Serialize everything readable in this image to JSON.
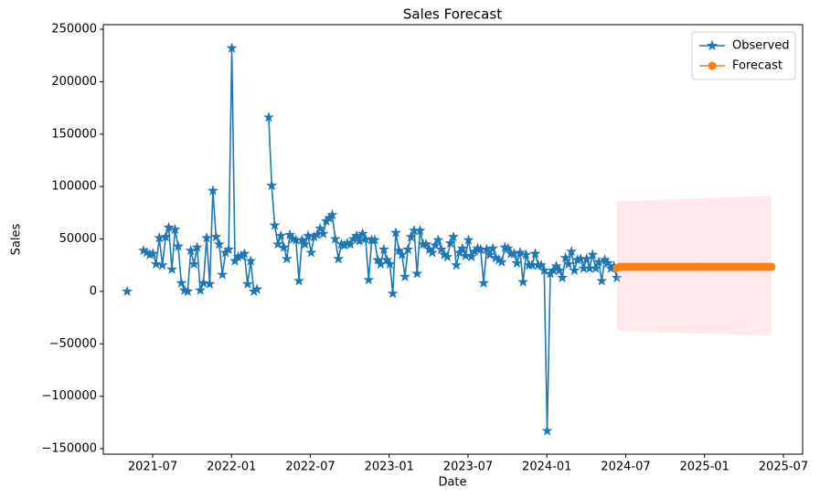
{
  "chart_data": {
    "type": "line",
    "title": "Sales Forecast",
    "x_label": "Date",
    "y_label": "Sales",
    "xlim": [
      2021.187,
      2025.622
    ],
    "ylim": [
      -155200,
      254400
    ],
    "grid": false,
    "legend": "upper right",
    "xticks": [
      {
        "value": 2021.5,
        "label": "2021-07"
      },
      {
        "value": 2022.0,
        "label": "2022-01"
      },
      {
        "value": 2022.5,
        "label": "2022-07"
      },
      {
        "value": 2023.0,
        "label": "2023-01"
      },
      {
        "value": 2023.5,
        "label": "2023-07"
      },
      {
        "value": 2024.0,
        "label": "2024-01"
      },
      {
        "value": 2024.5,
        "label": "2024-07"
      },
      {
        "value": 2025.0,
        "label": "2025-01"
      },
      {
        "value": 2025.5,
        "label": "2025-07"
      }
    ],
    "yticks": [
      {
        "value": -150000,
        "label": "−150000"
      },
      {
        "value": -100000,
        "label": "−100000"
      },
      {
        "value": -50000,
        "label": "−50000"
      },
      0,
      50000,
      100000,
      150000,
      200000,
      250000
    ],
    "series": [
      {
        "name": "Observed",
        "color": "#1f77b4",
        "marker": "star",
        "x": [
          2021.338,
          2021.4,
          2021.442,
          2021.462,
          2021.482,
          2021.502,
          2021.522,
          2021.542,
          2021.562,
          2021.582,
          2021.602,
          2021.622,
          2021.642,
          2021.662,
          2021.682,
          2021.702,
          2021.722,
          2021.742,
          2021.762,
          2021.782,
          2021.802,
          2021.822,
          2021.842,
          2021.862,
          2021.882,
          2021.902,
          2021.922,
          2021.942,
          2021.962,
          2021.982,
          2022.002,
          2022.022,
          2022.042,
          2022.062,
          2022.082,
          2022.102,
          2022.122,
          2022.142,
          2022.162,
          2022.2,
          2022.236,
          2022.255,
          2022.274,
          2022.294,
          2022.313,
          2022.332,
          2022.351,
          2022.37,
          2022.39,
          2022.409,
          2022.428,
          2022.447,
          2022.466,
          2022.486,
          2022.505,
          2022.524,
          2022.543,
          2022.562,
          2022.582,
          2022.601,
          2022.62,
          2022.639,
          2022.658,
          2022.678,
          2022.697,
          2022.716,
          2022.735,
          2022.754,
          2022.774,
          2022.793,
          2022.812,
          2022.831,
          2022.85,
          2022.87,
          2022.889,
          2022.908,
          2022.927,
          2022.946,
          2022.966,
          2022.985,
          2023.004,
          2023.023,
          2023.042,
          2023.062,
          2023.081,
          2023.1,
          2023.119,
          2023.138,
          2023.158,
          2023.177,
          2023.196,
          2023.215,
          2023.234,
          2023.254,
          2023.273,
          2023.292,
          2023.311,
          2023.33,
          2023.35,
          2023.369,
          2023.388,
          2023.407,
          2023.426,
          2023.446,
          2023.465,
          2023.484,
          2023.503,
          2023.522,
          2023.542,
          2023.561,
          2023.58,
          2023.599,
          2023.618,
          2023.638,
          2023.657,
          2023.676,
          2023.695,
          2023.714,
          2023.734,
          2023.753,
          2023.772,
          2023.791,
          2023.81,
          2023.83,
          2023.849,
          2023.868,
          2023.887,
          2023.906,
          2023.926,
          2023.945,
          2023.964,
          2023.983,
          2024.002,
          2024.022,
          2024.041,
          2024.06,
          2024.079,
          2024.098,
          2024.118,
          2024.137,
          2024.156,
          2024.175,
          2024.194,
          2024.214,
          2024.233,
          2024.252,
          2024.271,
          2024.29,
          2024.31,
          2024.329,
          2024.348,
          2024.367,
          2024.386,
          2024.406,
          2024.425,
          2024.444
        ],
        "values": [
          0,
          null,
          39000,
          37000,
          35000,
          36000,
          26000,
          51000,
          25000,
          52000,
          61000,
          21000,
          59000,
          43000,
          8000,
          1000,
          0,
          39000,
          26000,
          42000,
          1000,
          8000,
          51000,
          7000,
          96000,
          52000,
          45000,
          16000,
          37000,
          40000,
          232000,
          29000,
          33000,
          34000,
          36000,
          7000,
          29000,
          0,
          2000,
          null,
          166000,
          101000,
          63000,
          45000,
          53000,
          42000,
          31000,
          54000,
          50000,
          49000,
          10000,
          49000,
          45000,
          53000,
          37000,
          52000,
          54000,
          60000,
          55000,
          67000,
          70000,
          73000,
          50000,
          31000,
          45000,
          44000,
          46000,
          45000,
          50000,
          53000,
          48000,
          55000,
          50000,
          11000,
          49000,
          49000,
          30000,
          26000,
          40000,
          30000,
          26000,
          -2000,
          56000,
          39000,
          35000,
          14000,
          40000,
          52000,
          58000,
          17000,
          58000,
          45000,
          45000,
          40000,
          37000,
          44000,
          49000,
          40000,
          35000,
          33000,
          46000,
          52000,
          25000,
          37000,
          41000,
          34000,
          49000,
          33000,
          38000,
          41000,
          40000,
          8000,
          40000,
          35000,
          41000,
          32000,
          30000,
          28000,
          42000,
          41000,
          36000,
          36000,
          27000,
          37000,
          9000,
          35000,
          25000,
          25000,
          36000,
          25000,
          25000,
          20000,
          -133000,
          17000,
          20000,
          24000,
          20000,
          13000,
          32000,
          26000,
          38000,
          20000,
          30000,
          31000,
          22000,
          31000,
          22000,
          35000,
          22000,
          28000,
          10000,
          30000,
          27000,
          22000,
          24000,
          13000
        ]
      },
      {
        "name": "Forecast",
        "color": "#ff7f0e",
        "marker": "circle",
        "band_color": "#ffc0cb",
        "x": [
          2024.445,
          2024.464,
          2024.483,
          2024.503,
          2024.522,
          2024.541,
          2024.56,
          2024.579,
          2024.599,
          2024.618,
          2024.637,
          2024.656,
          2024.675,
          2024.695,
          2024.714,
          2024.733,
          2024.752,
          2024.771,
          2024.791,
          2024.81,
          2024.829,
          2024.848,
          2024.867,
          2024.887,
          2024.906,
          2024.925,
          2024.944,
          2024.963,
          2024.983,
          2025.002,
          2025.021,
          2025.04,
          2025.059,
          2025.079,
          2025.098,
          2025.117,
          2025.136,
          2025.155,
          2025.175,
          2025.194,
          2025.213,
          2025.232,
          2025.251,
          2025.271,
          2025.29,
          2025.309,
          2025.328,
          2025.347,
          2025.367,
          2025.386,
          2025.405,
          2025.424
        ],
        "values": [
          22500,
          23500,
          23500,
          23500,
          23500,
          23500,
          23500,
          23500,
          23500,
          23500,
          23500,
          23500,
          23500,
          23500,
          23500,
          23500,
          23500,
          23500,
          23500,
          23500,
          23500,
          23500,
          23500,
          23500,
          23500,
          23500,
          23500,
          23500,
          23500,
          23500,
          23500,
          23500,
          23500,
          23500,
          23500,
          23500,
          23500,
          23500,
          23500,
          23500,
          23500,
          23500,
          23500,
          23500,
          23500,
          23500,
          23500,
          23500,
          23500,
          23500,
          23500,
          23500
        ],
        "upper": [
          86000,
          86100,
          86200,
          86300,
          86400,
          86500,
          86600,
          86700,
          86800,
          86900,
          87000,
          87100,
          87200,
          87300,
          87400,
          87500,
          87600,
          87700,
          87800,
          87900,
          88000,
          88100,
          88200,
          88300,
          88400,
          88500,
          88600,
          88700,
          88800,
          88900,
          89000,
          89100,
          89200,
          89300,
          89400,
          89500,
          89600,
          89700,
          89800,
          89900,
          90000,
          90100,
          90200,
          90300,
          90400,
          90500,
          90600,
          90700,
          90800,
          90900,
          91000,
          91100
        ],
        "lower": [
          -38000,
          -38080,
          -38160,
          -38240,
          -38320,
          -38400,
          -38480,
          -38560,
          -38640,
          -38720,
          -38800,
          -38880,
          -38960,
          -39040,
          -39120,
          -39200,
          -39280,
          -39360,
          -39440,
          -39520,
          -39600,
          -39680,
          -39760,
          -39840,
          -39920,
          -40000,
          -40080,
          -40160,
          -40240,
          -40320,
          -40400,
          -40480,
          -40560,
          -40640,
          -40720,
          -40800,
          -40880,
          -40960,
          -41040,
          -41120,
          -41200,
          -41280,
          -41360,
          -41440,
          -41520,
          -41600,
          -41680,
          -41760,
          -41840,
          -41920,
          -42000,
          -42080
        ]
      }
    ]
  }
}
